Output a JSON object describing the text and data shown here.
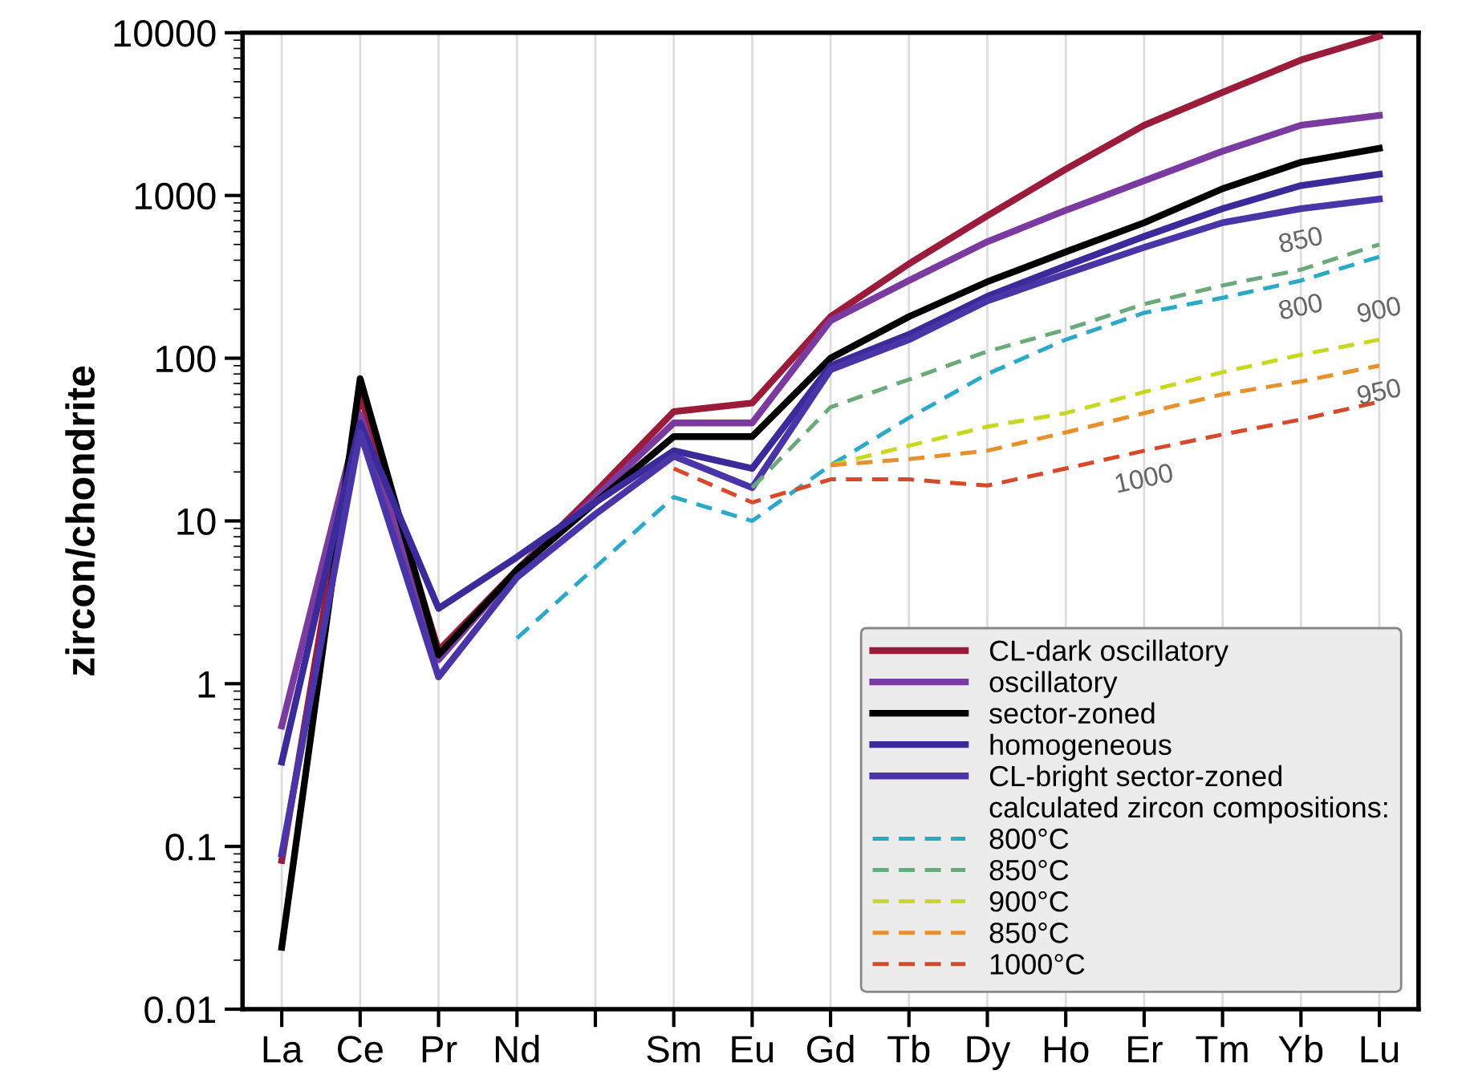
{
  "chart_data": {
    "type": "line",
    "ylabel": "zircon/chondrite",
    "categories": [
      "La",
      "Ce",
      "Pr",
      "Nd",
      null,
      "Sm",
      "Eu",
      "Gd",
      "Tb",
      "Dy",
      "Ho",
      "Er",
      "Tm",
      "Yb",
      "Lu"
    ],
    "log": "y",
    "ylim": [
      0.01,
      10000
    ],
    "yticks": [
      0.01,
      0.1,
      1,
      10,
      100,
      1000,
      10000
    ],
    "grid": "x",
    "legend": "bottom right",
    "series": [
      {
        "name": "CL-dark oscillatory",
        "color": "#9b1b3b",
        "line_style": "solid",
        "values": [
          0.082,
          60,
          1.6,
          5,
          15,
          47,
          53,
          180,
          380,
          750,
          1450,
          2700,
          4300,
          6800,
          9500
        ]
      },
      {
        "name": "oscillatory",
        "color": "#7b3aa0",
        "line_style": "solid",
        "values": [
          0.55,
          45,
          1.4,
          5,
          14,
          40,
          40,
          170,
          300,
          520,
          810,
          1230,
          1870,
          2700,
          3100
        ]
      },
      {
        "name": "sector-zoned",
        "color": "#000000",
        "line_style": "solid",
        "values": [
          0.024,
          75,
          1.5,
          5,
          13,
          33,
          33,
          100,
          180,
          295,
          450,
          680,
          1100,
          1600,
          1950
        ]
      },
      {
        "name": "homogeneous",
        "color": "#3b2a9a",
        "line_style": "solid",
        "values": [
          0.33,
          40,
          2.9,
          6,
          13,
          27,
          21,
          90,
          140,
          240,
          370,
          560,
          830,
          1150,
          1350
        ]
      },
      {
        "name": "CL-bright sector-zoned",
        "color": "#4a35a8",
        "line_style": "solid",
        "values": [
          0.09,
          35,
          1.1,
          4.5,
          11,
          25,
          16,
          85,
          130,
          225,
          330,
          480,
          680,
          830,
          950
        ]
      },
      {
        "name": "800°C",
        "color": "#2aa9c8",
        "line_style": "dashed",
        "values": [
          null,
          null,
          null,
          1.9,
          5.2,
          14,
          10,
          22,
          43,
          80,
          130,
          190,
          235,
          300,
          420
        ]
      },
      {
        "name": "850°C",
        "color": "#6aaa7a",
        "line_style": "dashed",
        "values": [
          null,
          null,
          null,
          null,
          null,
          null,
          16,
          50,
          74,
          110,
          150,
          215,
          280,
          350,
          500
        ]
      },
      {
        "name": "900°C",
        "color": "#c8d820",
        "line_style": "dashed",
        "values": [
          null,
          null,
          null,
          null,
          null,
          null,
          null,
          22,
          29,
          38,
          46,
          62,
          82,
          105,
          130
        ]
      },
      {
        "name": "850°C",
        "color": "#e8902a",
        "line_style": "dashed",
        "values": [
          null,
          null,
          null,
          null,
          null,
          null,
          null,
          22,
          24,
          27,
          35,
          46,
          60,
          72,
          90
        ]
      },
      {
        "name": "1000°C",
        "color": "#d8482a",
        "line_style": "dashed",
        "values": [
          null,
          null,
          null,
          null,
          null,
          21,
          13,
          18,
          18,
          16.5,
          21,
          27,
          34,
          42,
          54
        ]
      }
    ],
    "annotations": [
      "calculated zircon compositions:",
      {
        "text": "850",
        "x": "Yb",
        "y": 350
      },
      {
        "text": "800",
        "x": "Yb",
        "y": 300
      },
      {
        "text": "900",
        "x": "Lu",
        "y": 130
      },
      {
        "text": "950",
        "x": "Lu",
        "y": 90
      },
      {
        "text": "1000",
        "x": "Er",
        "y": 27
      }
    ]
  }
}
